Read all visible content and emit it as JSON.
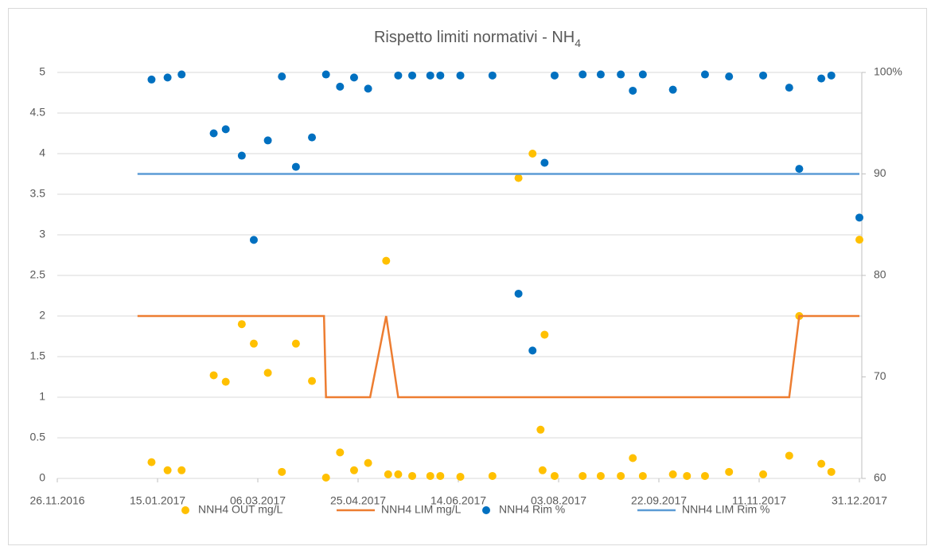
{
  "chart_data": {
    "type": "scatter",
    "title": "Rispetto limiti normativi - NH",
    "title_subscript": "4",
    "xlim": [
      "26.11.2016",
      "31.12.2017"
    ],
    "xticks": [
      "26.11.2016",
      "15.01.2017",
      "06.03.2017",
      "25.04.2017",
      "14.06.2017",
      "03.08.2017",
      "22.09.2017",
      "11.11.2017",
      "31.12.2017"
    ],
    "ylim": [
      0,
      5
    ],
    "yticks": [
      0,
      0.5,
      1,
      1.5,
      2,
      2.5,
      3,
      3.5,
      4,
      4.5,
      5
    ],
    "y2lim": [
      60,
      100
    ],
    "y2ticks": [
      60,
      70,
      80,
      90,
      {
        "value": 100,
        "label": "100%"
      }
    ],
    "grid": true,
    "legend": "bottom",
    "series": [
      {
        "name": "NNH4 OUT mg/L",
        "kind": "scatter",
        "color": "#ffc000",
        "x": [
          "12.01.2017",
          "20.01.2017",
          "27.01.2017",
          "12.02.2017",
          "18.02.2017",
          "26.02.2017",
          "04.03.2017",
          "11.03.2017",
          "18.03.2017",
          "25.03.2017",
          "02.04.2017",
          "09.04.2017",
          "16.04.2017",
          "23.04.2017",
          "30.04.2017",
          "09.05.2017",
          "10.05.2017",
          "15.05.2017",
          "22.05.2017",
          "31.05.2017",
          "05.06.2017",
          "15.06.2017",
          "01.07.2017",
          "14.07.2017",
          "21.07.2017",
          "25.07.2017",
          "26.07.2017",
          "27.07.2017",
          "01.08.2017",
          "15.08.2017",
          "24.08.2017",
          "03.09.2017",
          "09.09.2017",
          "14.09.2017",
          "29.09.2017",
          "06.10.2017",
          "15.10.2017",
          "27.10.2017",
          "13.11.2017",
          "26.11.2017",
          "01.12.2017",
          "12.12.2017",
          "17.12.2017",
          "31.12.2017"
        ],
        "values": [
          0.2,
          0.1,
          0.1,
          1.27,
          1.19,
          1.9,
          1.66,
          1.3,
          0.08,
          1.66,
          1.2,
          0.01,
          0.32,
          0.1,
          0.19,
          2.68,
          0.05,
          0.05,
          0.03,
          0.03,
          0.03,
          0.02,
          0.03,
          3.7,
          4.0,
          0.6,
          0.1,
          1.77,
          0.03,
          0.03,
          0.03,
          0.03,
          0.25,
          0.03,
          0.05,
          0.03,
          0.03,
          0.08,
          0.05,
          0.28,
          2.0,
          0.18,
          0.08,
          2.94
        ]
      },
      {
        "name": "NNH4 LIM mg/L",
        "kind": "line",
        "color": "#ed7d31",
        "x": [
          "05.01.2017",
          "08.04.2017",
          "09.04.2017",
          "01.05.2017",
          "09.05.2017",
          "15.05.2017",
          "26.11.2017",
          "01.12.2017",
          "31.12.2017"
        ],
        "values": [
          2,
          2,
          1,
          1,
          2,
          1,
          1,
          2,
          2
        ]
      },
      {
        "name": "NNH4 Rim %",
        "kind": "scatter",
        "color": "#0070c0",
        "axis": "y2",
        "x": [
          "12.01.2017",
          "20.01.2017",
          "27.01.2017",
          "12.02.2017",
          "18.02.2017",
          "26.02.2017",
          "04.03.2017",
          "11.03.2017",
          "18.03.2017",
          "25.03.2017",
          "02.04.2017",
          "09.04.2017",
          "16.04.2017",
          "23.04.2017",
          "30.04.2017",
          "15.05.2017",
          "22.05.2017",
          "31.05.2017",
          "05.06.2017",
          "15.06.2017",
          "01.07.2017",
          "14.07.2017",
          "21.07.2017",
          "27.07.2017",
          "01.08.2017",
          "15.08.2017",
          "24.08.2017",
          "03.09.2017",
          "09.09.2017",
          "14.09.2017",
          "29.09.2017",
          "15.10.2017",
          "27.10.2017",
          "13.11.2017",
          "26.11.2017",
          "01.12.2017",
          "12.12.2017",
          "17.12.2017",
          "31.12.2017"
        ],
        "values": [
          99.3,
          99.5,
          99.8,
          94.0,
          94.4,
          91.8,
          83.5,
          93.3,
          99.6,
          90.7,
          93.6,
          99.8,
          98.6,
          99.5,
          98.4,
          99.7,
          99.7,
          99.7,
          99.7,
          99.7,
          99.7,
          78.2,
          72.6,
          91.1,
          99.7,
          99.8,
          99.8,
          99.8,
          98.2,
          99.8,
          98.3,
          99.8,
          99.6,
          99.7,
          98.5,
          90.5,
          99.4,
          99.7,
          85.7
        ]
      },
      {
        "name": "NNH4 LIM Rim %",
        "kind": "line",
        "color": "#5b9bd5",
        "axis": "y2",
        "x": [
          "05.01.2017",
          "31.12.2017"
        ],
        "values": [
          90,
          90
        ]
      }
    ]
  }
}
